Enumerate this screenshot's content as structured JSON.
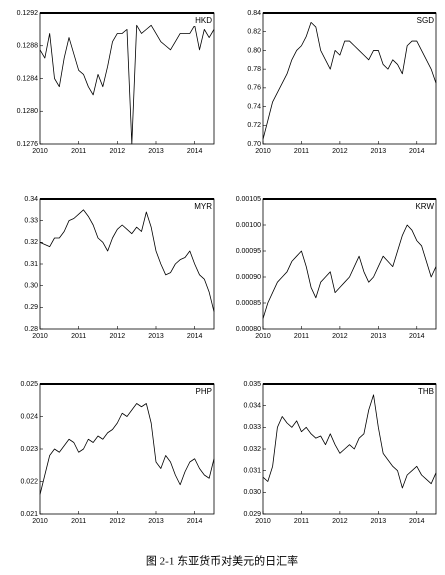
{
  "caption": "图 2-1  东亚货币对美元的日汇率",
  "chart_data": [
    {
      "type": "line",
      "title": "HKD",
      "color": "#000000",
      "x": [
        2010,
        2010.125,
        2010.25,
        2010.375,
        2010.5,
        2010.625,
        2010.75,
        2010.875,
        2011,
        2011.125,
        2011.25,
        2011.375,
        2011.5,
        2011.625,
        2011.75,
        2011.875,
        2012,
        2012.125,
        2012.25,
        2012.375,
        2012.5,
        2012.625,
        2012.75,
        2012.875,
        2013,
        2013.125,
        2013.25,
        2013.375,
        2013.5,
        2013.625,
        2013.75,
        2013.875,
        2014,
        2014.125,
        2014.25,
        2014.375,
        2014.5
      ],
      "values": [
        0.12875,
        0.12865,
        0.12895,
        0.1284,
        0.1283,
        0.12865,
        0.1289,
        0.1287,
        0.1285,
        0.12845,
        0.1283,
        0.1282,
        0.12845,
        0.1283,
        0.12855,
        0.12885,
        0.12895,
        0.12895,
        0.129,
        0.1276,
        0.12905,
        0.12895,
        0.129,
        0.12905,
        0.12895,
        0.12885,
        0.1288,
        0.12875,
        0.12885,
        0.12895,
        0.12895,
        0.12895,
        0.12905,
        0.12875,
        0.129,
        0.1289,
        0.129
      ],
      "xlim": [
        2010,
        2014.5
      ],
      "xticks": [
        2010,
        2011,
        2012,
        2013,
        2014
      ],
      "ylim": [
        0.1276,
        0.1292
      ],
      "yticks": [
        0.1276,
        {
          "value": 0.128,
          "label": "0.1280"
        },
        0.1284,
        0.1288,
        0.1292
      ]
    },
    {
      "type": "line",
      "title": "SGD",
      "color": "#000000",
      "x": [
        2010,
        2010.125,
        2010.25,
        2010.375,
        2010.5,
        2010.625,
        2010.75,
        2010.875,
        2011,
        2011.125,
        2011.25,
        2011.375,
        2011.5,
        2011.625,
        2011.75,
        2011.875,
        2012,
        2012.125,
        2012.25,
        2012.375,
        2012.5,
        2012.625,
        2012.75,
        2012.875,
        2013,
        2013.125,
        2013.25,
        2013.375,
        2013.5,
        2013.625,
        2013.75,
        2013.875,
        2014,
        2014.125,
        2014.25,
        2014.375,
        2014.5
      ],
      "values": [
        0.705,
        0.725,
        0.745,
        0.755,
        0.765,
        0.775,
        0.79,
        0.8,
        0.805,
        0.815,
        0.83,
        0.825,
        0.8,
        0.79,
        0.78,
        0.8,
        0.795,
        0.81,
        0.81,
        0.805,
        0.8,
        0.795,
        0.79,
        0.8,
        0.8,
        0.785,
        0.78,
        0.79,
        0.785,
        0.775,
        0.805,
        0.81,
        0.81,
        0.8,
        0.79,
        0.78,
        0.765
      ],
      "xlim": [
        2010,
        2014.5
      ],
      "xticks": [
        2010,
        2011,
        2012,
        2013,
        2014
      ],
      "ylim": [
        0.7,
        0.84
      ],
      "yticks": [
        {
          "value": 0.7,
          "label": "0.70"
        },
        0.72,
        0.74,
        0.76,
        0.78,
        {
          "value": 0.8,
          "label": "0.80"
        },
        0.82,
        0.84
      ]
    },
    {
      "type": "line",
      "title": "MYR",
      "color": "#000000",
      "x": [
        2010,
        2010.125,
        2010.25,
        2010.375,
        2010.5,
        2010.625,
        2010.75,
        2010.875,
        2011,
        2011.125,
        2011.25,
        2011.375,
        2011.5,
        2011.625,
        2011.75,
        2011.875,
        2012,
        2012.125,
        2012.25,
        2012.375,
        2012.5,
        2012.625,
        2012.75,
        2012.875,
        2013,
        2013.125,
        2013.25,
        2013.375,
        2013.5,
        2013.625,
        2013.75,
        2013.875,
        2014,
        2014.125,
        2014.25,
        2014.375,
        2014.5
      ],
      "values": [
        0.32,
        0.319,
        0.318,
        0.322,
        0.322,
        0.325,
        0.33,
        0.331,
        0.333,
        0.335,
        0.332,
        0.328,
        0.322,
        0.32,
        0.316,
        0.322,
        0.326,
        0.328,
        0.326,
        0.324,
        0.327,
        0.325,
        0.334,
        0.327,
        0.316,
        0.31,
        0.305,
        0.306,
        0.31,
        0.312,
        0.313,
        0.316,
        0.31,
        0.305,
        0.303,
        0.297,
        0.288
      ],
      "xlim": [
        2010,
        2014.5
      ],
      "xticks": [
        2010,
        2011,
        2012,
        2013,
        2014
      ],
      "ylim": [
        0.28,
        0.34
      ],
      "yticks": [
        0.28,
        0.29,
        {
          "value": 0.3,
          "label": "0.30"
        },
        0.31,
        0.32,
        0.33,
        0.34
      ]
    },
    {
      "type": "line",
      "title": "KRW",
      "color": "#000000",
      "x": [
        2010,
        2010.125,
        2010.25,
        2010.375,
        2010.5,
        2010.625,
        2010.75,
        2010.875,
        2011,
        2011.125,
        2011.25,
        2011.375,
        2011.5,
        2011.625,
        2011.75,
        2011.875,
        2012,
        2012.125,
        2012.25,
        2012.375,
        2012.5,
        2012.625,
        2012.75,
        2012.875,
        2013,
        2013.125,
        2013.25,
        2013.375,
        2013.5,
        2013.625,
        2013.75,
        2013.875,
        2014,
        2014.125,
        2014.25,
        2014.375,
        2014.5
      ],
      "values": [
        0.00082,
        0.00085,
        0.00087,
        0.00089,
        0.0009,
        0.00091,
        0.00093,
        0.00094,
        0.00095,
        0.00092,
        0.00088,
        0.00086,
        0.00089,
        0.0009,
        0.00091,
        0.00087,
        0.00088,
        0.00089,
        0.0009,
        0.00092,
        0.00094,
        0.00091,
        0.00089,
        0.0009,
        0.00092,
        0.00094,
        0.00093,
        0.00092,
        0.00095,
        0.00098,
        0.001,
        0.00099,
        0.00097,
        0.00096,
        0.00093,
        0.0009,
        0.00092
      ],
      "xlim": [
        2010,
        2014.5
      ],
      "xticks": [
        2010,
        2011,
        2012,
        2013,
        2014
      ],
      "ylim": [
        0.0008,
        0.00105
      ],
      "yticks": [
        {
          "value": 0.0008,
          "label": "0.00080"
        },
        0.00085,
        {
          "value": 0.0009,
          "label": "0.00090"
        },
        0.00095,
        {
          "value": 0.001,
          "label": "0.00100"
        },
        0.00105
      ]
    },
    {
      "type": "line",
      "title": "PHP",
      "color": "#000000",
      "x": [
        2010,
        2010.125,
        2010.25,
        2010.375,
        2010.5,
        2010.625,
        2010.75,
        2010.875,
        2011,
        2011.125,
        2011.25,
        2011.375,
        2011.5,
        2011.625,
        2011.75,
        2011.875,
        2012,
        2012.125,
        2012.25,
        2012.375,
        2012.5,
        2012.625,
        2012.75,
        2012.875,
        2013,
        2013.125,
        2013.25,
        2013.375,
        2013.5,
        2013.625,
        2013.75,
        2013.875,
        2014,
        2014.125,
        2014.25,
        2014.375,
        2014.5
      ],
      "values": [
        0.0216,
        0.0222,
        0.0228,
        0.023,
        0.0229,
        0.0231,
        0.0233,
        0.0232,
        0.0229,
        0.023,
        0.0233,
        0.0232,
        0.0234,
        0.0233,
        0.0235,
        0.0236,
        0.0238,
        0.0241,
        0.024,
        0.0242,
        0.0244,
        0.0243,
        0.0244,
        0.0238,
        0.0226,
        0.0224,
        0.0228,
        0.0226,
        0.0222,
        0.0219,
        0.0223,
        0.0226,
        0.0227,
        0.0224,
        0.0222,
        0.0221,
        0.0227
      ],
      "xlim": [
        2010,
        2014.5
      ],
      "xticks": [
        2010,
        2011,
        2012,
        2013,
        2014
      ],
      "ylim": [
        0.021,
        0.025
      ],
      "yticks": [
        0.021,
        0.022,
        0.023,
        0.024,
        0.025
      ]
    },
    {
      "type": "line",
      "title": "THB",
      "color": "#000000",
      "x": [
        2010,
        2010.125,
        2010.25,
        2010.375,
        2010.5,
        2010.625,
        2010.75,
        2010.875,
        2011,
        2011.125,
        2011.25,
        2011.375,
        2011.5,
        2011.625,
        2011.75,
        2011.875,
        2012,
        2012.125,
        2012.25,
        2012.375,
        2012.5,
        2012.625,
        2012.75,
        2012.875,
        2013,
        2013.125,
        2013.25,
        2013.375,
        2013.5,
        2013.625,
        2013.75,
        2013.875,
        2014,
        2014.125,
        2014.25,
        2014.375,
        2014.5
      ],
      "values": [
        0.0307,
        0.0305,
        0.0312,
        0.033,
        0.0335,
        0.0332,
        0.033,
        0.0333,
        0.0328,
        0.033,
        0.0327,
        0.0325,
        0.0326,
        0.0322,
        0.0327,
        0.0322,
        0.0318,
        0.032,
        0.0322,
        0.032,
        0.0325,
        0.0327,
        0.0338,
        0.0345,
        0.033,
        0.0318,
        0.0315,
        0.0312,
        0.031,
        0.0302,
        0.0308,
        0.031,
        0.0312,
        0.0308,
        0.0306,
        0.0304,
        0.0309
      ],
      "xlim": [
        2010,
        2014.5
      ],
      "xticks": [
        2010,
        2011,
        2012,
        2013,
        2014
      ],
      "ylim": [
        0.029,
        0.035
      ],
      "yticks": [
        0.029,
        {
          "value": 0.03,
          "label": "0.030"
        },
        0.031,
        0.032,
        0.033,
        0.034,
        0.035
      ]
    }
  ]
}
